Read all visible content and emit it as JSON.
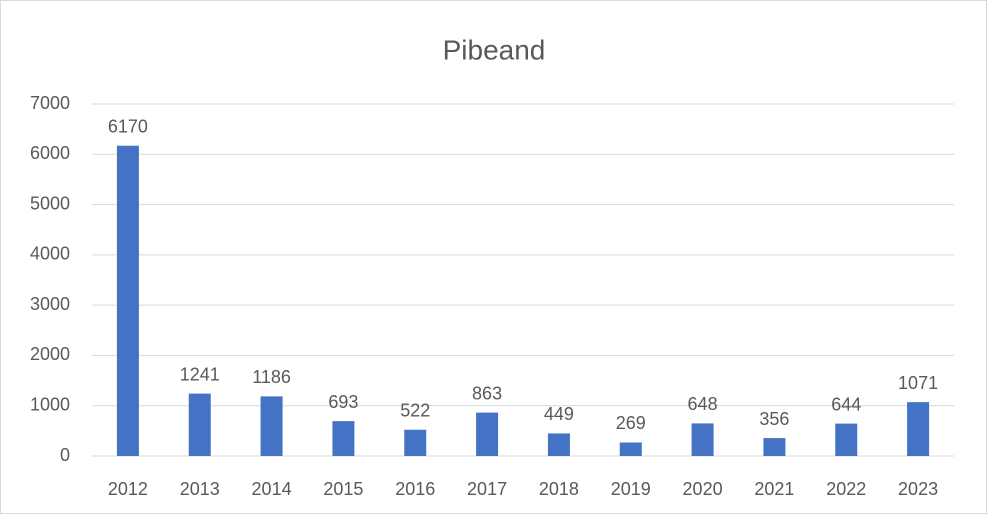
{
  "chart_data": {
    "type": "bar",
    "title": "Pibeand",
    "categories": [
      "2012",
      "2013",
      "2014",
      "2015",
      "2016",
      "2017",
      "2018",
      "2019",
      "2020",
      "2021",
      "2022",
      "2023"
    ],
    "values": [
      6170,
      1241,
      1186,
      693,
      522,
      863,
      449,
      269,
      648,
      356,
      644,
      1071
    ],
    "color": "#4472c4",
    "ylim": [
      0,
      7000
    ],
    "yticks": [
      0,
      1000,
      2000,
      3000,
      4000,
      5000,
      6000,
      7000
    ],
    "grid": true
  }
}
